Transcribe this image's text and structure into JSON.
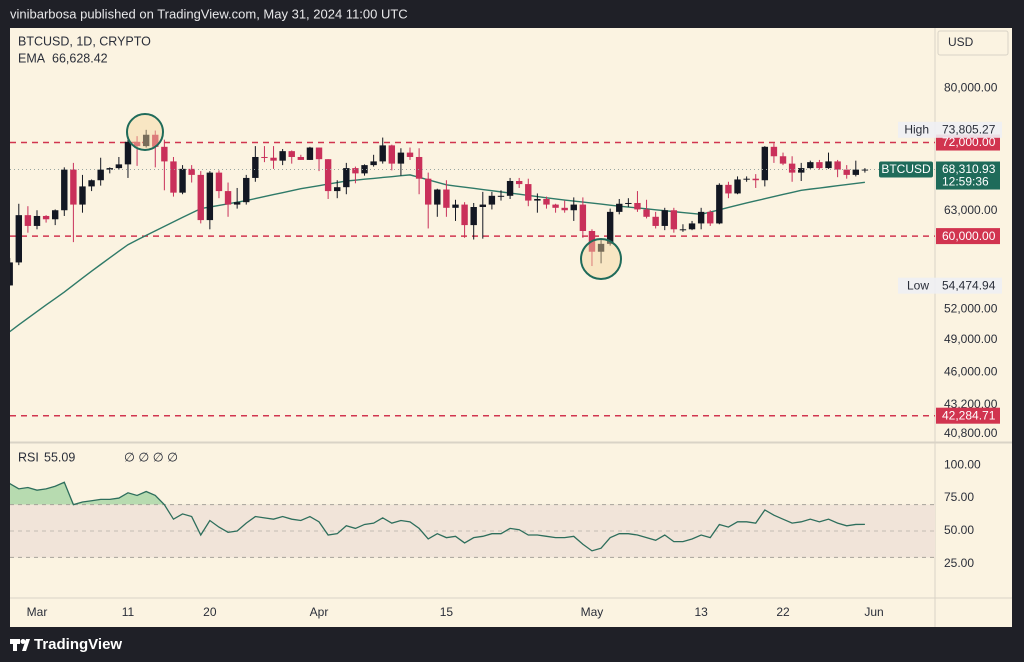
{
  "header": {
    "publisher": "vinibarbosa published on TradingView.com, May 31, 2024 11:00 UTC"
  },
  "footer": {
    "brand": "TradingView"
  },
  "chart_data": [
    {
      "type": "candlestick",
      "title": "BTCUSD, 1D, CRYPTO",
      "currency": "USD",
      "symbol": "BTCUSD",
      "countdown": "12:59:36",
      "up_color": "#131722",
      "down_color": "#c9305a",
      "categories": [
        null,
        null,
        null,
        "Mar",
        null,
        null,
        null,
        null,
        null,
        null,
        null,
        null,
        null,
        "11",
        null,
        null,
        null,
        null,
        null,
        null,
        null,
        null,
        "20",
        null,
        null,
        null,
        null,
        null,
        null,
        null,
        null,
        null,
        null,
        null,
        "Apr",
        null,
        null,
        null,
        null,
        null,
        null,
        null,
        null,
        null,
        null,
        null,
        null,
        null,
        "15",
        null,
        null,
        null,
        null,
        null,
        null,
        null,
        null,
        null,
        null,
        null,
        null,
        null,
        null,
        null,
        "May",
        null,
        null,
        null,
        null,
        null,
        null,
        null,
        null,
        null,
        null,
        null,
        "13",
        null,
        null,
        null,
        null,
        null,
        null,
        null,
        null,
        "22",
        null,
        null,
        null,
        null,
        null,
        null,
        null,
        null,
        null,
        "Jun"
      ],
      "open": [
        54500,
        57000,
        62500,
        61200,
        62400,
        62000,
        63100,
        68300,
        63800,
        66100,
        66900,
        68300,
        68500,
        69000,
        72100,
        71500,
        73100,
        71400,
        69400,
        65300,
        68400,
        67600,
        61900,
        67900,
        65500,
        63800,
        64100,
        67200,
        70000,
        69900,
        69500,
        70800,
        70000,
        69600,
        71300,
        69700,
        65500,
        66000,
        68500,
        67800,
        68900,
        69400,
        71600,
        69100,
        70600,
        70000,
        67100,
        63800,
        65700,
        63400,
        63800,
        61300,
        63500,
        63800,
        64900,
        64900,
        66800,
        66400,
        64300,
        64500,
        63800,
        63400,
        63100,
        63800,
        60600,
        58200,
        59100,
        62900,
        63900,
        64000,
        63200,
        62300,
        61200,
        63100,
        60800,
        60800,
        61500,
        62900,
        61500,
        66300,
        65200,
        67000,
        67100,
        66900,
        71400,
        70100,
        69100,
        67900,
        68500,
        69300,
        68500,
        69400,
        68300,
        67600,
        68300,
        null
      ],
      "high": [
        57500,
        63900,
        63600,
        63100,
        62500,
        63200,
        68600,
        69200,
        67600,
        67000,
        69900,
        68600,
        70000,
        72800,
        72900,
        73805.27,
        73700,
        72400,
        70000,
        68900,
        68900,
        68100,
        68100,
        68200,
        66600,
        65900,
        67600,
        71500,
        71500,
        71500,
        71100,
        70900,
        70300,
        71400,
        71300,
        69700,
        66900,
        69200,
        68700,
        69000,
        70300,
        72700,
        71700,
        71200,
        71300,
        71200,
        67900,
        65800,
        66900,
        64400,
        64100,
        64000,
        65400,
        65400,
        65600,
        67200,
        67200,
        67100,
        65200,
        64800,
        63900,
        64300,
        64700,
        64700,
        60800,
        59600,
        63300,
        64500,
        64600,
        65500,
        64400,
        62900,
        63400,
        63400,
        61400,
        61800,
        63400,
        63100,
        66500,
        66700,
        67400,
        67400,
        67700,
        71500,
        71900,
        70600,
        70100,
        69200,
        69500,
        69600,
        70600,
        69600,
        68900,
        69500,
        68500,
        null
      ],
      "low": [
        54474.94,
        56700,
        60400,
        60800,
        61600,
        61300,
        62400,
        59300,
        62800,
        65500,
        66200,
        67800,
        68300,
        67200,
        68800,
        71300,
        68600,
        65600,
        64800,
        65100,
        66600,
        61500,
        60800,
        64600,
        62300,
        63300,
        63800,
        66700,
        69300,
        68400,
        68900,
        69100,
        69600,
        69600,
        68100,
        64500,
        64600,
        65100,
        66500,
        67500,
        68700,
        69100,
        68200,
        67500,
        69600,
        65100,
        60900,
        62300,
        62300,
        61800,
        59800,
        59600,
        59700,
        63200,
        64300,
        64500,
        65900,
        63600,
        62800,
        63300,
        62800,
        62800,
        61800,
        59800,
        56600,
        56900,
        58900,
        62600,
        63500,
        62900,
        62100,
        60900,
        60700,
        60400,
        60500,
        60700,
        60800,
        61200,
        61400,
        64600,
        65100,
        66700,
        65900,
        66100,
        69200,
        68900,
        66700,
        66800,
        68400,
        68300,
        68400,
        67300,
        67100,
        67400,
        67900,
        null
      ],
      "close": [
        57000,
        62500,
        61200,
        62400,
        62000,
        63100,
        68300,
        63800,
        66100,
        66900,
        68300,
        68500,
        69000,
        72100,
        71500,
        73100,
        71400,
        69400,
        65300,
        68400,
        67600,
        61900,
        67900,
        65500,
        63800,
        64100,
        67200,
        70000,
        69900,
        69500,
        70800,
        70000,
        69600,
        71300,
        69700,
        65500,
        66000,
        68500,
        67800,
        68900,
        69400,
        71600,
        69100,
        70600,
        70000,
        67100,
        63800,
        65700,
        63400,
        63800,
        61300,
        63500,
        63800,
        64900,
        64900,
        66800,
        66400,
        64300,
        64500,
        63800,
        63400,
        63100,
        63800,
        60600,
        58200,
        59100,
        62900,
        63900,
        64000,
        63200,
        62300,
        61200,
        63100,
        60800,
        60800,
        61500,
        62900,
        61500,
        66300,
        65200,
        67000,
        67100,
        66900,
        71400,
        70100,
        69100,
        67900,
        68500,
        69300,
        68500,
        69400,
        68300,
        67600,
        68300,
        68310.93,
        null
      ],
      "overlays": [
        {
          "name": "EMA",
          "color": "#2f7a68",
          "last_label": "66,628.42",
          "values": [
            49800,
            50470,
            51130,
            51800,
            52470,
            53130,
            53800,
            54540,
            55290,
            56030,
            56770,
            57510,
            58260,
            59000,
            59540,
            60080,
            60610,
            61150,
            61690,
            62230,
            62760,
            63300,
            63500,
            63700,
            63900,
            64100,
            64300,
            64550,
            64800,
            65050,
            65300,
            65550,
            65800,
            66000,
            66200,
            66400,
            66600,
            66800,
            66910,
            67030,
            67140,
            67260,
            67370,
            67490,
            67600,
            67280,
            66950,
            66630,
            66300,
            66150,
            66000,
            65850,
            65700,
            65550,
            65400,
            65250,
            65100,
            64950,
            64800,
            64650,
            64500,
            64370,
            64240,
            64110,
            63990,
            63860,
            63730,
            63600,
            63490,
            63380,
            63270,
            63160,
            63040,
            62930,
            62820,
            62710,
            62600,
            62880,
            63160,
            63440,
            63720,
            64000,
            64270,
            64530,
            64800,
            65070,
            65330,
            65600,
            65750,
            65890,
            66040,
            66190,
            66340,
            66480,
            66628.42,
            null
          ]
        }
      ],
      "levels": [
        {
          "value": 72000,
          "label": "72,000.00"
        },
        {
          "value": 60000,
          "label": "60,000.00"
        },
        {
          "value": 42284.71,
          "label": "42,284.71"
        }
      ],
      "level_color": "#d1344f",
      "extremes": [
        {
          "name": "High",
          "value": 73805.27,
          "label": "73,805.27"
        },
        {
          "name": "Low",
          "value": 54474.94,
          "label": "54,474.94"
        }
      ],
      "last_price": {
        "value": 68310.93,
        "label": "68,310.93",
        "color": "#1f6b5a"
      },
      "ylim": [
        40250,
        90000
      ],
      "log_scale": true,
      "yticks": [
        {
          "value": 80000,
          "label": "80,000.00"
        },
        {
          "value": 63000,
          "label": "63,000.00"
        },
        {
          "value": 52000,
          "label": "52,000.00"
        },
        {
          "value": 49000,
          "label": "49,000.00"
        },
        {
          "value": 46000,
          "label": "46,000.00"
        },
        {
          "value": 43200,
          "label": "43,200.00"
        },
        {
          "value": 40800,
          "label": "40,800.00"
        }
      ]
    },
    {
      "type": "line",
      "title": "RSI",
      "icons": "∅ ∅ ∅ ∅",
      "color": "#2e6e5c",
      "fill_color": "#b7dbb0",
      "band_color": "#f1e4d9",
      "values": [
        86,
        82,
        83,
        81,
        82,
        84,
        87,
        70,
        72,
        73,
        74,
        74,
        75,
        79,
        77,
        80,
        77,
        70,
        59,
        63,
        61,
        47,
        58,
        53,
        49,
        50,
        56,
        61,
        60,
        59,
        61,
        59,
        58,
        61,
        57,
        47,
        48,
        54,
        52,
        55,
        56,
        60,
        56,
        58,
        57,
        52,
        44,
        48,
        45,
        46,
        41,
        45,
        46,
        48,
        48,
        52,
        51,
        47,
        47,
        46,
        45,
        45,
        46,
        40,
        35,
        37,
        45,
        48,
        48,
        47,
        45,
        43,
        47,
        42,
        42,
        44,
        47,
        45,
        55,
        53,
        57,
        57,
        56,
        66,
        62,
        59,
        56,
        57,
        59,
        57,
        59,
        56,
        54,
        55,
        55.09,
        null
      ],
      "band": [
        30,
        70
      ],
      "midline": 50,
      "ylim": [
        0,
        116
      ],
      "yticks": [
        {
          "value": 100,
          "label": "100.00"
        },
        {
          "value": 75,
          "label": "75.00"
        },
        {
          "value": 50,
          "label": "50.00"
        },
        {
          "value": 25,
          "label": "25.00"
        }
      ]
    }
  ]
}
